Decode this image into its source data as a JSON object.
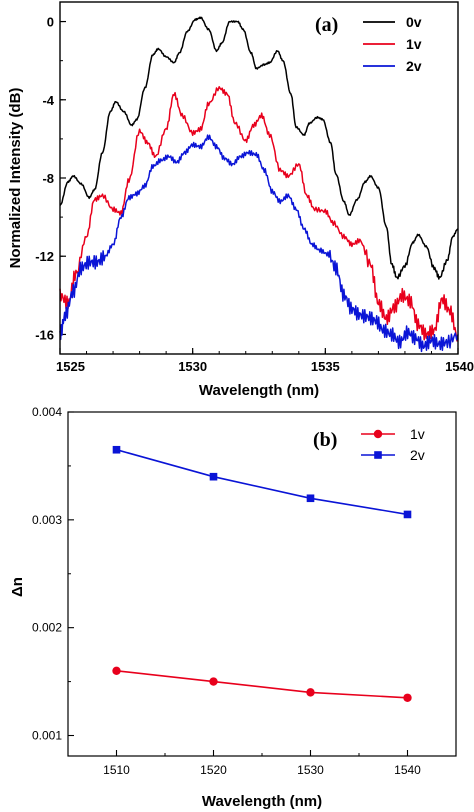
{
  "chart_data": [
    {
      "type": "line",
      "panel_label": "(a)",
      "xlabel": "Wavelength (nm)",
      "ylabel": "Normalized Intensity (dB)",
      "xlim": [
        1525,
        1540
      ],
      "ylim": [
        -17,
        1
      ],
      "xticks": [
        1525,
        1530,
        1535,
        1540
      ],
      "yticks": [
        0,
        -4,
        -8,
        -12,
        -16
      ],
      "legend_position": "top-right",
      "series": [
        {
          "name": "0v",
          "color": "#000000",
          "points": [
            [
              1525,
              -9.4
            ],
            [
              1525.3,
              -8.2
            ],
            [
              1525.5,
              -7.9
            ],
            [
              1525.8,
              -8.3
            ],
            [
              1526.1,
              -9.0
            ],
            [
              1526.3,
              -8.6
            ],
            [
              1526.6,
              -6.7
            ],
            [
              1526.9,
              -4.6
            ],
            [
              1527.1,
              -4.1
            ],
            [
              1527.4,
              -4.6
            ],
            [
              1527.7,
              -5.3
            ],
            [
              1527.9,
              -5.0
            ],
            [
              1528.2,
              -3.4
            ],
            [
              1528.5,
              -1.7
            ],
            [
              1528.7,
              -1.4
            ],
            [
              1529.0,
              -1.8
            ],
            [
              1529.3,
              -2.1
            ],
            [
              1529.5,
              -1.6
            ],
            [
              1529.8,
              -0.5
            ],
            [
              1530.1,
              0.1
            ],
            [
              1530.3,
              0.2
            ],
            [
              1530.6,
              -0.4
            ],
            [
              1530.9,
              -1.5
            ],
            [
              1531.1,
              -1.1
            ],
            [
              1531.4,
              0.0
            ],
            [
              1531.7,
              0.0
            ],
            [
              1531.9,
              -0.4
            ],
            [
              1532.2,
              -1.6
            ],
            [
              1532.4,
              -2.4
            ],
            [
              1532.7,
              -2.2
            ],
            [
              1532.9,
              -2.1
            ],
            [
              1533.2,
              -1.5
            ],
            [
              1533.4,
              -2.0
            ],
            [
              1533.7,
              -3.7
            ],
            [
              1533.9,
              -5.4
            ],
            [
              1534.2,
              -5.8
            ],
            [
              1534.4,
              -5.2
            ],
            [
              1534.7,
              -4.9
            ],
            [
              1534.9,
              -5.0
            ],
            [
              1535.2,
              -6.2
            ],
            [
              1535.4,
              -7.8
            ],
            [
              1535.7,
              -9.2
            ],
            [
              1535.9,
              -9.9
            ],
            [
              1536.2,
              -9.1
            ],
            [
              1536.5,
              -8.2
            ],
            [
              1536.7,
              -7.9
            ],
            [
              1537.0,
              -8.5
            ],
            [
              1537.3,
              -10.5
            ],
            [
              1537.5,
              -12.4
            ],
            [
              1537.7,
              -13.1
            ],
            [
              1538.0,
              -12.5
            ],
            [
              1538.3,
              -11.3
            ],
            [
              1538.5,
              -10.9
            ],
            [
              1538.8,
              -11.5
            ],
            [
              1539.1,
              -12.6
            ],
            [
              1539.3,
              -13.1
            ],
            [
              1539.6,
              -12.2
            ],
            [
              1539.8,
              -11.0
            ],
            [
              1540,
              -10.6
            ]
          ]
        },
        {
          "name": "1v",
          "color": "#e8001c",
          "points": [
            [
              1525,
              -14.0
            ],
            [
              1525.3,
              -14.4
            ],
            [
              1525.6,
              -12.9
            ],
            [
              1526.0,
              -11.0
            ],
            [
              1526.3,
              -9.1
            ],
            [
              1526.6,
              -8.9
            ],
            [
              1527.0,
              -9.6
            ],
            [
              1527.3,
              -9.8
            ],
            [
              1527.6,
              -8.1
            ],
            [
              1528.0,
              -5.6
            ],
            [
              1528.3,
              -6.2
            ],
            [
              1528.6,
              -6.9
            ],
            [
              1529.0,
              -5.5
            ],
            [
              1529.3,
              -3.7
            ],
            [
              1529.6,
              -4.8
            ],
            [
              1530.0,
              -5.7
            ],
            [
              1530.3,
              -5.5
            ],
            [
              1530.6,
              -4.2
            ],
            [
              1531.0,
              -3.4
            ],
            [
              1531.3,
              -3.7
            ],
            [
              1531.6,
              -5.2
            ],
            [
              1532.0,
              -6.1
            ],
            [
              1532.3,
              -5.3
            ],
            [
              1532.6,
              -4.8
            ],
            [
              1532.9,
              -5.8
            ],
            [
              1533.3,
              -7.6
            ],
            [
              1533.6,
              -7.9
            ],
            [
              1534.0,
              -7.3
            ],
            [
              1534.3,
              -8.9
            ],
            [
              1534.6,
              -9.6
            ],
            [
              1535.0,
              -9.7
            ],
            [
              1535.3,
              -10.3
            ],
            [
              1535.7,
              -11.0
            ],
            [
              1536.0,
              -11.4
            ],
            [
              1536.3,
              -11.2
            ],
            [
              1536.7,
              -12.4
            ],
            [
              1537.0,
              -14.4
            ],
            [
              1537.3,
              -15.2
            ],
            [
              1537.6,
              -14.6
            ],
            [
              1537.9,
              -14.0
            ],
            [
              1538.2,
              -14.3
            ],
            [
              1538.5,
              -15.5
            ],
            [
              1538.8,
              -16.0
            ],
            [
              1539.1,
              -15.8
            ],
            [
              1539.4,
              -14.2
            ],
            [
              1539.7,
              -14.8
            ],
            [
              1540,
              -16.2
            ]
          ]
        },
        {
          "name": "2v",
          "color": "#0a14d6",
          "points": [
            [
              1525,
              -16.0
            ],
            [
              1525.2,
              -15.0
            ],
            [
              1525.5,
              -13.8
            ],
            [
              1525.8,
              -12.6
            ],
            [
              1526.1,
              -12.3
            ],
            [
              1526.4,
              -12.3
            ],
            [
              1526.7,
              -12.0
            ],
            [
              1527.0,
              -11.4
            ],
            [
              1527.3,
              -10.0
            ],
            [
              1527.6,
              -9.0
            ],
            [
              1527.9,
              -8.8
            ],
            [
              1528.2,
              -8.4
            ],
            [
              1528.5,
              -7.4
            ],
            [
              1528.8,
              -7.1
            ],
            [
              1529.1,
              -6.9
            ],
            [
              1529.4,
              -7.2
            ],
            [
              1529.7,
              -6.7
            ],
            [
              1530.0,
              -6.3
            ],
            [
              1530.3,
              -6.4
            ],
            [
              1530.6,
              -5.9
            ],
            [
              1530.9,
              -6.4
            ],
            [
              1531.2,
              -7.0
            ],
            [
              1531.5,
              -7.3
            ],
            [
              1531.8,
              -6.9
            ],
            [
              1532.1,
              -6.7
            ],
            [
              1532.4,
              -6.8
            ],
            [
              1532.7,
              -7.6
            ],
            [
              1533.0,
              -8.7
            ],
            [
              1533.3,
              -9.2
            ],
            [
              1533.6,
              -8.9
            ],
            [
              1533.9,
              -9.6
            ],
            [
              1534.2,
              -10.6
            ],
            [
              1534.5,
              -11.4
            ],
            [
              1534.8,
              -11.7
            ],
            [
              1535.1,
              -11.9
            ],
            [
              1535.4,
              -12.6
            ],
            [
              1535.7,
              -14.0
            ],
            [
              1536.0,
              -14.7
            ],
            [
              1536.3,
              -15.0
            ],
            [
              1536.6,
              -15.1
            ],
            [
              1536.9,
              -15.3
            ],
            [
              1537.2,
              -15.8
            ],
            [
              1537.5,
              -16.0
            ],
            [
              1537.8,
              -16.4
            ],
            [
              1538.1,
              -15.9
            ],
            [
              1538.4,
              -16.2
            ],
            [
              1538.7,
              -16.6
            ],
            [
              1539.0,
              -16.3
            ],
            [
              1539.3,
              -16.5
            ],
            [
              1539.6,
              -16.4
            ],
            [
              1540,
              -16.0
            ]
          ]
        }
      ]
    },
    {
      "type": "line",
      "panel_label": "(b)",
      "xlabel": "Wavelength (nm)",
      "ylabel": "Δn",
      "xlim": [
        1505,
        1545
      ],
      "ylim": [
        0.00081,
        0.004
      ],
      "xticks": [
        1510,
        1520,
        1530,
        1540
      ],
      "yticks": [
        "0.001",
        "0.002",
        "0.003",
        "0.004"
      ],
      "legend_position": "top-right",
      "categories": [
        1510,
        1520,
        1530,
        1540
      ],
      "series": [
        {
          "name": "1v",
          "color": "#e8001c",
          "marker": "circle",
          "values": [
            0.0016,
            0.0015,
            0.0014,
            0.00135
          ]
        },
        {
          "name": "2v",
          "color": "#0a14d6",
          "marker": "square",
          "values": [
            0.00365,
            0.0034,
            0.0032,
            0.00305
          ]
        }
      ]
    }
  ]
}
